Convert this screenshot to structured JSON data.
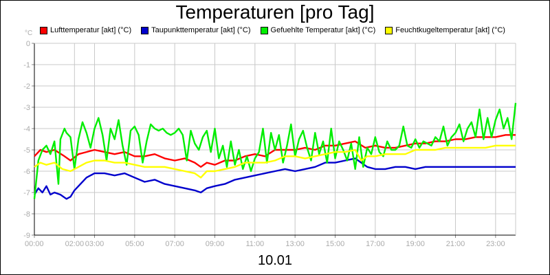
{
  "chart_data": {
    "type": "line",
    "title": "Temperaturen [pro Tag]",
    "xlabel": "10.01",
    "ylabel": "°C",
    "ylim": [
      -9,
      0
    ],
    "xlim": [
      0,
      24
    ],
    "yticks": [
      "0",
      "-1",
      "-2",
      "-3",
      "-4",
      "-5",
      "-6",
      "-7",
      "-8",
      "-9"
    ],
    "xticks": [
      "00:00",
      "02:00",
      "03:00",
      "05:00",
      "07:00",
      "09:00",
      "11:00",
      "13:00",
      "15:00",
      "17:00",
      "19:00",
      "21:00",
      "23:00"
    ],
    "xtick_hours": [
      0,
      2,
      3,
      5,
      7,
      9,
      11,
      13,
      15,
      17,
      19,
      21,
      23
    ],
    "grid": true,
    "legend_position": "top",
    "series": [
      {
        "name": "Lufttemperatur [akt] (°C)",
        "color": "#ff0000",
        "x": [
          0,
          0.3,
          0.6,
          1,
          1.5,
          1.8,
          2.2,
          2.6,
          3,
          3.5,
          4,
          4.5,
          5,
          5.5,
          6,
          6.5,
          7,
          7.5,
          8,
          8.3,
          8.6,
          9,
          9.5,
          10,
          10.5,
          11,
          11.5,
          12,
          12.5,
          13,
          13.5,
          14,
          14.5,
          15,
          15.5,
          16,
          16.5,
          17,
          17.5,
          18,
          18.5,
          19,
          19.5,
          20,
          20.5,
          21,
          21.5,
          22,
          22.5,
          23,
          23.5,
          24
        ],
        "y": [
          -5.3,
          -5.0,
          -5.1,
          -5.0,
          -5.3,
          -5.5,
          -5.2,
          -5.1,
          -5.0,
          -5.1,
          -5.2,
          -5.1,
          -5.3,
          -5.3,
          -5.2,
          -5.4,
          -5.5,
          -5.4,
          -5.6,
          -5.8,
          -5.6,
          -5.7,
          -5.5,
          -5.5,
          -5.3,
          -5.2,
          -5.3,
          -5.0,
          -5.0,
          -5.0,
          -4.9,
          -5.0,
          -4.8,
          -4.8,
          -4.7,
          -4.6,
          -4.9,
          -4.8,
          -4.9,
          -4.9,
          -4.8,
          -4.7,
          -4.7,
          -4.6,
          -4.6,
          -4.5,
          -4.5,
          -4.4,
          -4.4,
          -4.4,
          -4.3,
          -4.3
        ]
      },
      {
        "name": "Taupunkttemperatur [akt] (°C)",
        "color": "#0000cc",
        "x": [
          0,
          0.2,
          0.4,
          0.6,
          0.8,
          1.0,
          1.3,
          1.6,
          1.8,
          2.0,
          2.3,
          2.6,
          3.0,
          3.5,
          4.0,
          4.5,
          5.0,
          5.5,
          6.0,
          6.5,
          7.0,
          7.5,
          8.0,
          8.3,
          8.6,
          9.0,
          9.5,
          10.0,
          10.5,
          11.0,
          11.5,
          12.0,
          12.5,
          13.0,
          13.5,
          14.0,
          14.5,
          15.0,
          15.5,
          16.0,
          16.3,
          16.6,
          17.0,
          17.5,
          18.0,
          18.5,
          19.0,
          19.5,
          20.0,
          20.5,
          21.0,
          21.5,
          22.0,
          22.5,
          23.0,
          23.5,
          24.0
        ],
        "y": [
          -7.1,
          -6.8,
          -7.0,
          -6.7,
          -7.1,
          -7.0,
          -7.1,
          -7.3,
          -7.2,
          -6.9,
          -6.6,
          -6.3,
          -6.1,
          -6.1,
          -6.2,
          -6.1,
          -6.3,
          -6.5,
          -6.4,
          -6.6,
          -6.7,
          -6.8,
          -6.9,
          -7.0,
          -6.8,
          -6.7,
          -6.6,
          -6.4,
          -6.3,
          -6.2,
          -6.1,
          -6.0,
          -5.9,
          -6.0,
          -5.9,
          -5.8,
          -5.6,
          -5.6,
          -5.5,
          -5.4,
          -5.6,
          -5.8,
          -5.9,
          -5.9,
          -5.8,
          -5.8,
          -5.9,
          -5.8,
          -5.8,
          -5.8,
          -5.8,
          -5.8,
          -5.8,
          -5.8,
          -5.8,
          -5.8,
          -5.8
        ]
      },
      {
        "name": "Gefuehlte Temperatur [akt] (°C)",
        "color": "#00ee00",
        "x": [
          0,
          0.2,
          0.4,
          0.6,
          0.8,
          1.0,
          1.2,
          1.3,
          1.5,
          1.6,
          1.8,
          2.0,
          2.2,
          2.4,
          2.6,
          2.8,
          3.0,
          3.2,
          3.4,
          3.6,
          3.8,
          4.0,
          4.2,
          4.4,
          4.6,
          4.8,
          5.0,
          5.2,
          5.4,
          5.6,
          5.8,
          6.0,
          6.2,
          6.4,
          6.6,
          6.8,
          7.0,
          7.2,
          7.4,
          7.6,
          7.8,
          8.0,
          8.2,
          8.4,
          8.6,
          8.8,
          9.0,
          9.2,
          9.4,
          9.6,
          9.8,
          10.0,
          10.2,
          10.4,
          10.6,
          10.8,
          11.0,
          11.2,
          11.4,
          11.6,
          11.8,
          12.0,
          12.2,
          12.4,
          12.6,
          12.8,
          13.0,
          13.2,
          13.4,
          13.6,
          13.8,
          14.0,
          14.2,
          14.4,
          14.6,
          14.8,
          15.0,
          15.2,
          15.4,
          15.6,
          15.8,
          16.0,
          16.2,
          16.4,
          16.6,
          16.8,
          17.0,
          17.2,
          17.4,
          17.6,
          17.8,
          18.0,
          18.2,
          18.4,
          18.6,
          18.8,
          19.0,
          19.2,
          19.4,
          19.6,
          19.8,
          20.0,
          20.2,
          20.4,
          20.6,
          20.8,
          21.0,
          21.2,
          21.4,
          21.6,
          21.8,
          22.0,
          22.2,
          22.4,
          22.6,
          22.8,
          23.0,
          23.2,
          23.4,
          23.6,
          23.8,
          24.0
        ],
        "y": [
          -7.3,
          -5.5,
          -5.0,
          -4.8,
          -5.2,
          -4.6,
          -6.6,
          -4.5,
          -4.0,
          -4.2,
          -4.4,
          -5.9,
          -4.5,
          -3.7,
          -4.2,
          -4.9,
          -4.0,
          -3.5,
          -4.3,
          -5.5,
          -4.0,
          -4.5,
          -3.6,
          -4.8,
          -5.7,
          -4.1,
          -3.9,
          -4.3,
          -5.6,
          -4.6,
          -3.8,
          -4.0,
          -4.1,
          -4.0,
          -4.2,
          -4.3,
          -4.2,
          -4.0,
          -4.3,
          -5.5,
          -4.1,
          -4.7,
          -5.0,
          -4.4,
          -4.1,
          -5.1,
          -4.0,
          -5.4,
          -4.8,
          -5.8,
          -4.6,
          -5.7,
          -5.0,
          -5.9,
          -5.3,
          -6.0,
          -5.4,
          -5.1,
          -4.0,
          -5.6,
          -4.2,
          -5.0,
          -4.3,
          -5.6,
          -4.8,
          -3.8,
          -5.3,
          -4.5,
          -4.1,
          -4.9,
          -5.5,
          -4.2,
          -5.2,
          -4.6,
          -5.6,
          -4.0,
          -5.4,
          -4.6,
          -5.0,
          -5.5,
          -4.7,
          -5.9,
          -4.4,
          -5.8,
          -4.9,
          -5.2,
          -4.4,
          -5.1,
          -5.3,
          -4.6,
          -5.0,
          -5.0,
          -4.8,
          -3.9,
          -4.8,
          -4.9,
          -4.5,
          -4.9,
          -4.6,
          -4.7,
          -4.8,
          -4.4,
          -4.6,
          -3.9,
          -4.8,
          -4.4,
          -4.2,
          -3.8,
          -4.6,
          -4.0,
          -3.7,
          -4.4,
          -3.1,
          -4.5,
          -3.5,
          -4.4,
          -3.6,
          -3.1,
          -4.0,
          -3.5,
          -4.5,
          -2.8
        ]
      },
      {
        "name": "Feuchtkugeltemperatur [akt] (°C)",
        "color": "#ffff00",
        "x": [
          0,
          0.3,
          0.6,
          1.0,
          1.4,
          1.8,
          2.2,
          2.6,
          3.0,
          3.5,
          4.0,
          4.5,
          5.0,
          5.5,
          6.0,
          6.5,
          7.0,
          7.5,
          8.0,
          8.3,
          8.6,
          9.0,
          9.5,
          10.0,
          10.5,
          11.0,
          11.5,
          12.0,
          12.5,
          13.0,
          13.5,
          14.0,
          14.5,
          15.0,
          15.5,
          16.0,
          16.3,
          16.6,
          17.0,
          17.5,
          18.0,
          18.5,
          19.0,
          19.5,
          20.0,
          20.5,
          21.0,
          21.5,
          22.0,
          22.5,
          23.0,
          23.5,
          24.0
        ],
        "y": [
          -5.8,
          -5.6,
          -5.7,
          -5.6,
          -5.9,
          -6.0,
          -5.8,
          -5.6,
          -5.5,
          -5.5,
          -5.6,
          -5.6,
          -5.7,
          -5.8,
          -5.8,
          -5.8,
          -5.9,
          -6.0,
          -6.1,
          -6.3,
          -6.0,
          -6.0,
          -5.9,
          -5.8,
          -5.6,
          -5.6,
          -5.6,
          -5.5,
          -5.3,
          -5.3,
          -5.4,
          -5.3,
          -5.2,
          -5.1,
          -5.1,
          -5.0,
          -5.5,
          -5.3,
          -5.3,
          -5.2,
          -5.2,
          -5.2,
          -5.0,
          -5.0,
          -5.0,
          -4.9,
          -4.9,
          -4.9,
          -4.9,
          -4.9,
          -4.8,
          -4.8,
          -4.8
        ]
      }
    ]
  }
}
